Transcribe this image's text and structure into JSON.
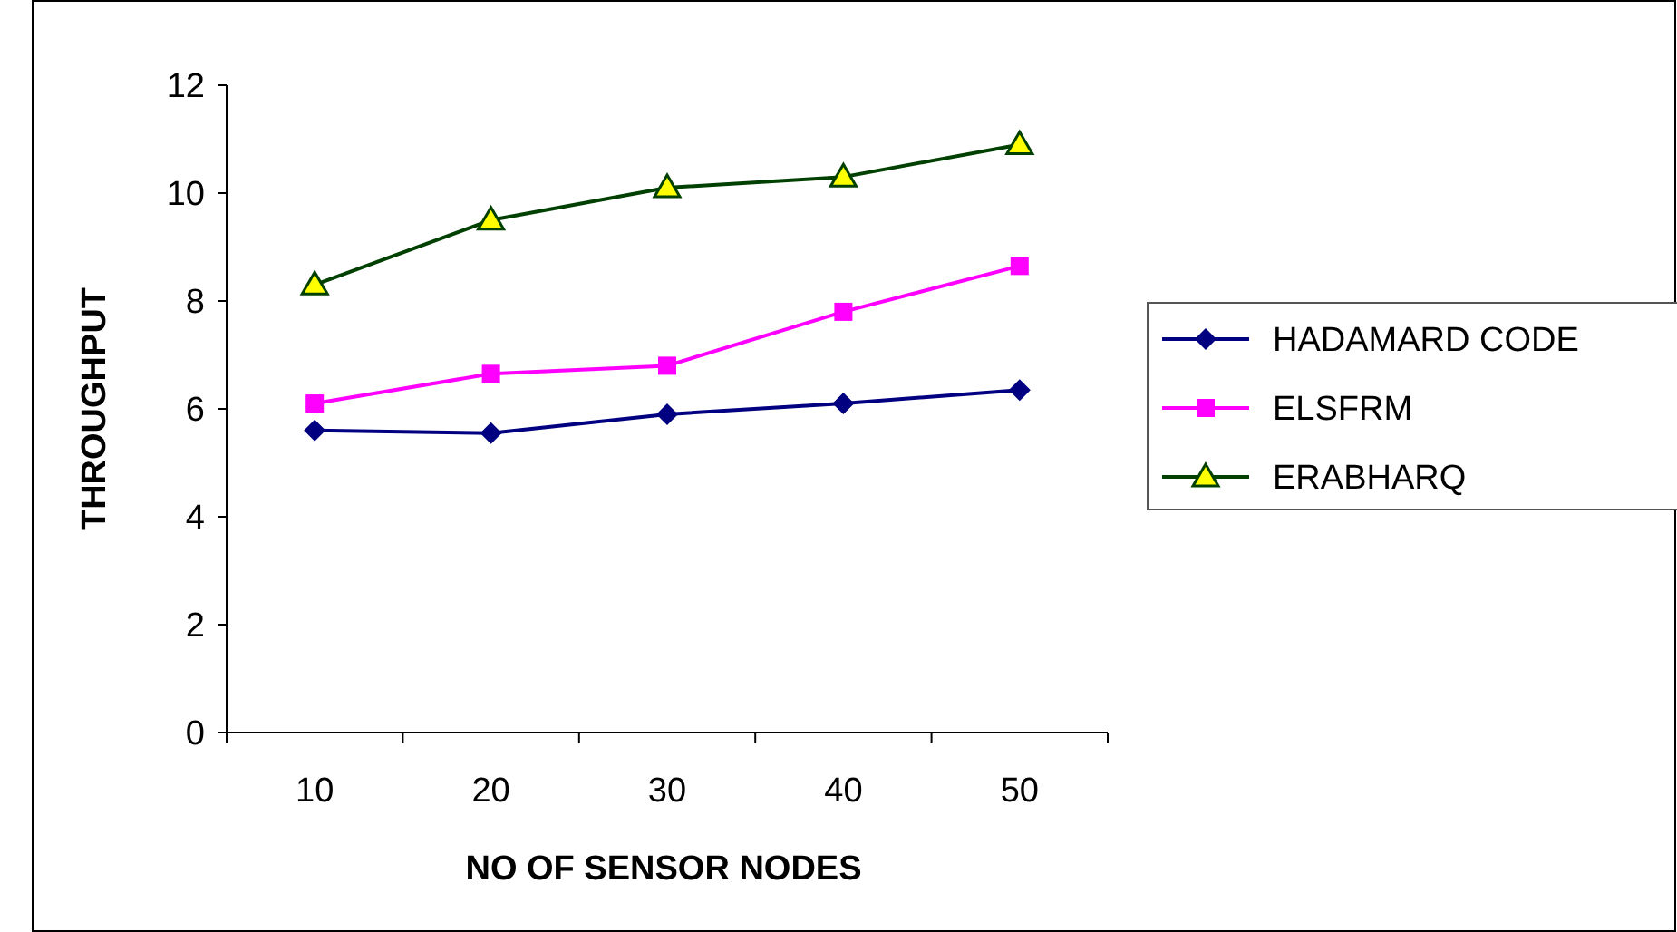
{
  "chart_data": {
    "type": "line",
    "xlabel": "NO OF SENSOR NODES",
    "ylabel": "THROUGHPUT",
    "categories": [
      "10",
      "20",
      "30",
      "40",
      "50"
    ],
    "ylim": [
      0,
      12
    ],
    "yticks": [
      0,
      2,
      4,
      6,
      8,
      10,
      12
    ],
    "grid": false,
    "legend": "right",
    "series": [
      {
        "name": "HADAMARD CODE",
        "color": "#000080",
        "marker": "diamond",
        "values": [
          5.6,
          5.55,
          5.9,
          6.1,
          6.35
        ]
      },
      {
        "name": "ELSFRM",
        "color": "#ff00ff",
        "marker": "square",
        "values": [
          6.1,
          6.65,
          6.8,
          7.8,
          8.65
        ]
      },
      {
        "name": "ERABHARQ",
        "color": "#004000",
        "marker": "triangle",
        "values": [
          8.3,
          9.5,
          10.1,
          10.3,
          10.9
        ]
      }
    ]
  }
}
